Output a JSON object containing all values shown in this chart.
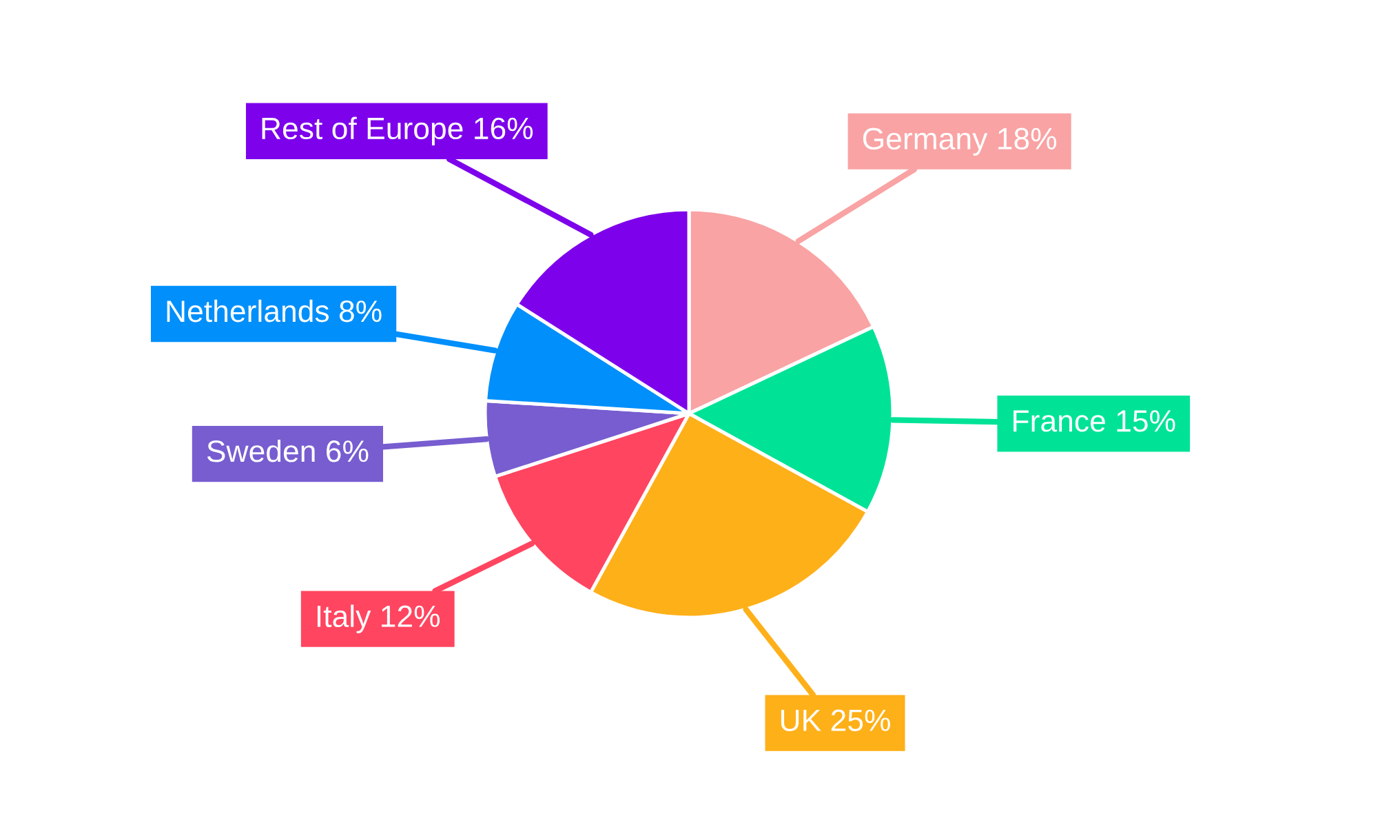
{
  "chart_data": {
    "type": "pie",
    "categories": [
      "Germany",
      "France",
      "UK",
      "Italy",
      "Sweden",
      "Netherlands",
      "Rest of Europe"
    ],
    "values": [
      18,
      15,
      25,
      12,
      6,
      8,
      16
    ],
    "value_labels": [
      "18%",
      "15%",
      "25%",
      "12%",
      "6%",
      "8%",
      "16%"
    ],
    "colors": [
      "#f9a3a4",
      "#00e396",
      "#feb019",
      "#ff4560",
      "#775dd0",
      "#008ffb",
      "#7d02eb"
    ]
  }
}
